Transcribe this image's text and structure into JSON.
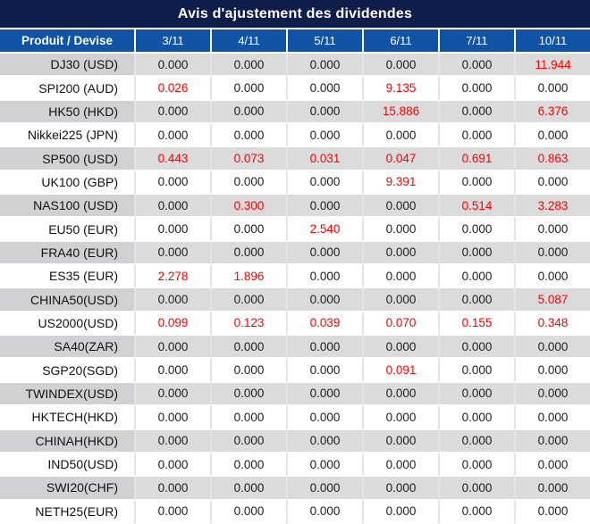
{
  "title": "Avis d'ajustement des dividendes",
  "colors": {
    "title_bg": "#0e1d49",
    "header_bg": "#1153a5",
    "row_alt_bg": "#dbdbdb",
    "product_alt_bg": "#d1d1d4",
    "negative": "#ff0000",
    "header_text": "#ffffff",
    "value_text": "#1d1d1d"
  },
  "table": {
    "product_header": "Produit / Devise",
    "date_headers": [
      "3/11",
      "4/11",
      "5/11",
      "6/11",
      "7/11",
      "10/11"
    ],
    "rows": [
      {
        "product": "DJ30 (USD)",
        "values": [
          "0.000",
          "0.000",
          "0.000",
          "0.000",
          "0.000",
          "11.944"
        ],
        "red": [
          false,
          false,
          false,
          false,
          false,
          true
        ]
      },
      {
        "product": "SPI200 (AUD)",
        "values": [
          "0.026",
          "0.000",
          "0.000",
          "9.135",
          "0.000",
          "0.000"
        ],
        "red": [
          true,
          false,
          false,
          true,
          false,
          false
        ]
      },
      {
        "product": "HK50 (HKD)",
        "values": [
          "0.000",
          "0.000",
          "0.000",
          "15.886",
          "0.000",
          "6.376"
        ],
        "red": [
          false,
          false,
          false,
          true,
          false,
          true
        ]
      },
      {
        "product": "Nikkei225 (JPN)",
        "values": [
          "0.000",
          "0.000",
          "0.000",
          "0.000",
          "0.000",
          "0.000"
        ],
        "red": [
          false,
          false,
          false,
          false,
          false,
          false
        ]
      },
      {
        "product": "SP500 (USD)",
        "values": [
          "0.443",
          "0.073",
          "0.031",
          "0.047",
          "0.691",
          "0.863"
        ],
        "red": [
          true,
          true,
          true,
          true,
          true,
          true
        ]
      },
      {
        "product": "UK100 (GBP)",
        "values": [
          "0.000",
          "0.000",
          "0.000",
          "9.391",
          "0.000",
          "0.000"
        ],
        "red": [
          false,
          false,
          false,
          true,
          false,
          false
        ]
      },
      {
        "product": "NAS100 (USD)",
        "values": [
          "0.000",
          "0.300",
          "0.000",
          "0.000",
          "0.514",
          "3.283"
        ],
        "red": [
          false,
          true,
          false,
          false,
          true,
          true
        ]
      },
      {
        "product": "EU50 (EUR)",
        "values": [
          "0.000",
          "0.000",
          "2.540",
          "0.000",
          "0.000",
          "0.000"
        ],
        "red": [
          false,
          false,
          true,
          false,
          false,
          false
        ]
      },
      {
        "product": "FRA40 (EUR)",
        "values": [
          "0.000",
          "0.000",
          "0.000",
          "0.000",
          "0.000",
          "0.000"
        ],
        "red": [
          false,
          false,
          false,
          false,
          false,
          false
        ]
      },
      {
        "product": "ES35 (EUR)",
        "values": [
          "2.278",
          "1.896",
          "0.000",
          "0.000",
          "0.000",
          "0.000"
        ],
        "red": [
          true,
          true,
          false,
          false,
          false,
          false
        ]
      },
      {
        "product": "CHINA50(USD)",
        "values": [
          "0.000",
          "0.000",
          "0.000",
          "0.000",
          "0.000",
          "5.087"
        ],
        "red": [
          false,
          false,
          false,
          false,
          false,
          true
        ]
      },
      {
        "product": "US2000(USD)",
        "values": [
          "0.099",
          "0.123",
          "0.039",
          "0.070",
          "0.155",
          "0.348"
        ],
        "red": [
          true,
          true,
          true,
          true,
          true,
          true
        ]
      },
      {
        "product": "SA40(ZAR)",
        "values": [
          "0.000",
          "0.000",
          "0.000",
          "0.000",
          "0.000",
          "0.000"
        ],
        "red": [
          false,
          false,
          false,
          false,
          false,
          false
        ]
      },
      {
        "product": "SGP20(SGD)",
        "values": [
          "0.000",
          "0.000",
          "0.000",
          "0.091",
          "0.000",
          "0.000"
        ],
        "red": [
          false,
          false,
          false,
          true,
          false,
          false
        ]
      },
      {
        "product": "TWINDEX(USD)",
        "values": [
          "0.000",
          "0.000",
          "0.000",
          "0.000",
          "0.000",
          "0.000"
        ],
        "red": [
          false,
          false,
          false,
          false,
          false,
          false
        ]
      },
      {
        "product": "HKTECH(HKD)",
        "values": [
          "0.000",
          "0.000",
          "0.000",
          "0.000",
          "0.000",
          "0.000"
        ],
        "red": [
          false,
          false,
          false,
          false,
          false,
          false
        ]
      },
      {
        "product": "CHINAH(HKD)",
        "values": [
          "0.000",
          "0.000",
          "0.000",
          "0.000",
          "0.000",
          "0.000"
        ],
        "red": [
          false,
          false,
          false,
          false,
          false,
          false
        ]
      },
      {
        "product": "IND50(USD)",
        "values": [
          "0.000",
          "0.000",
          "0.000",
          "0.000",
          "0.000",
          "0.000"
        ],
        "red": [
          false,
          false,
          false,
          false,
          false,
          false
        ]
      },
      {
        "product": "SWI20(CHF)",
        "values": [
          "0.000",
          "0.000",
          "0.000",
          "0.000",
          "0.000",
          "0.000"
        ],
        "red": [
          false,
          false,
          false,
          false,
          false,
          false
        ]
      },
      {
        "product": "NETH25(EUR)",
        "values": [
          "0.000",
          "0.000",
          "0.000",
          "0.000",
          "0.000",
          "0.000"
        ],
        "red": [
          false,
          false,
          false,
          false,
          false,
          false
        ]
      }
    ]
  }
}
